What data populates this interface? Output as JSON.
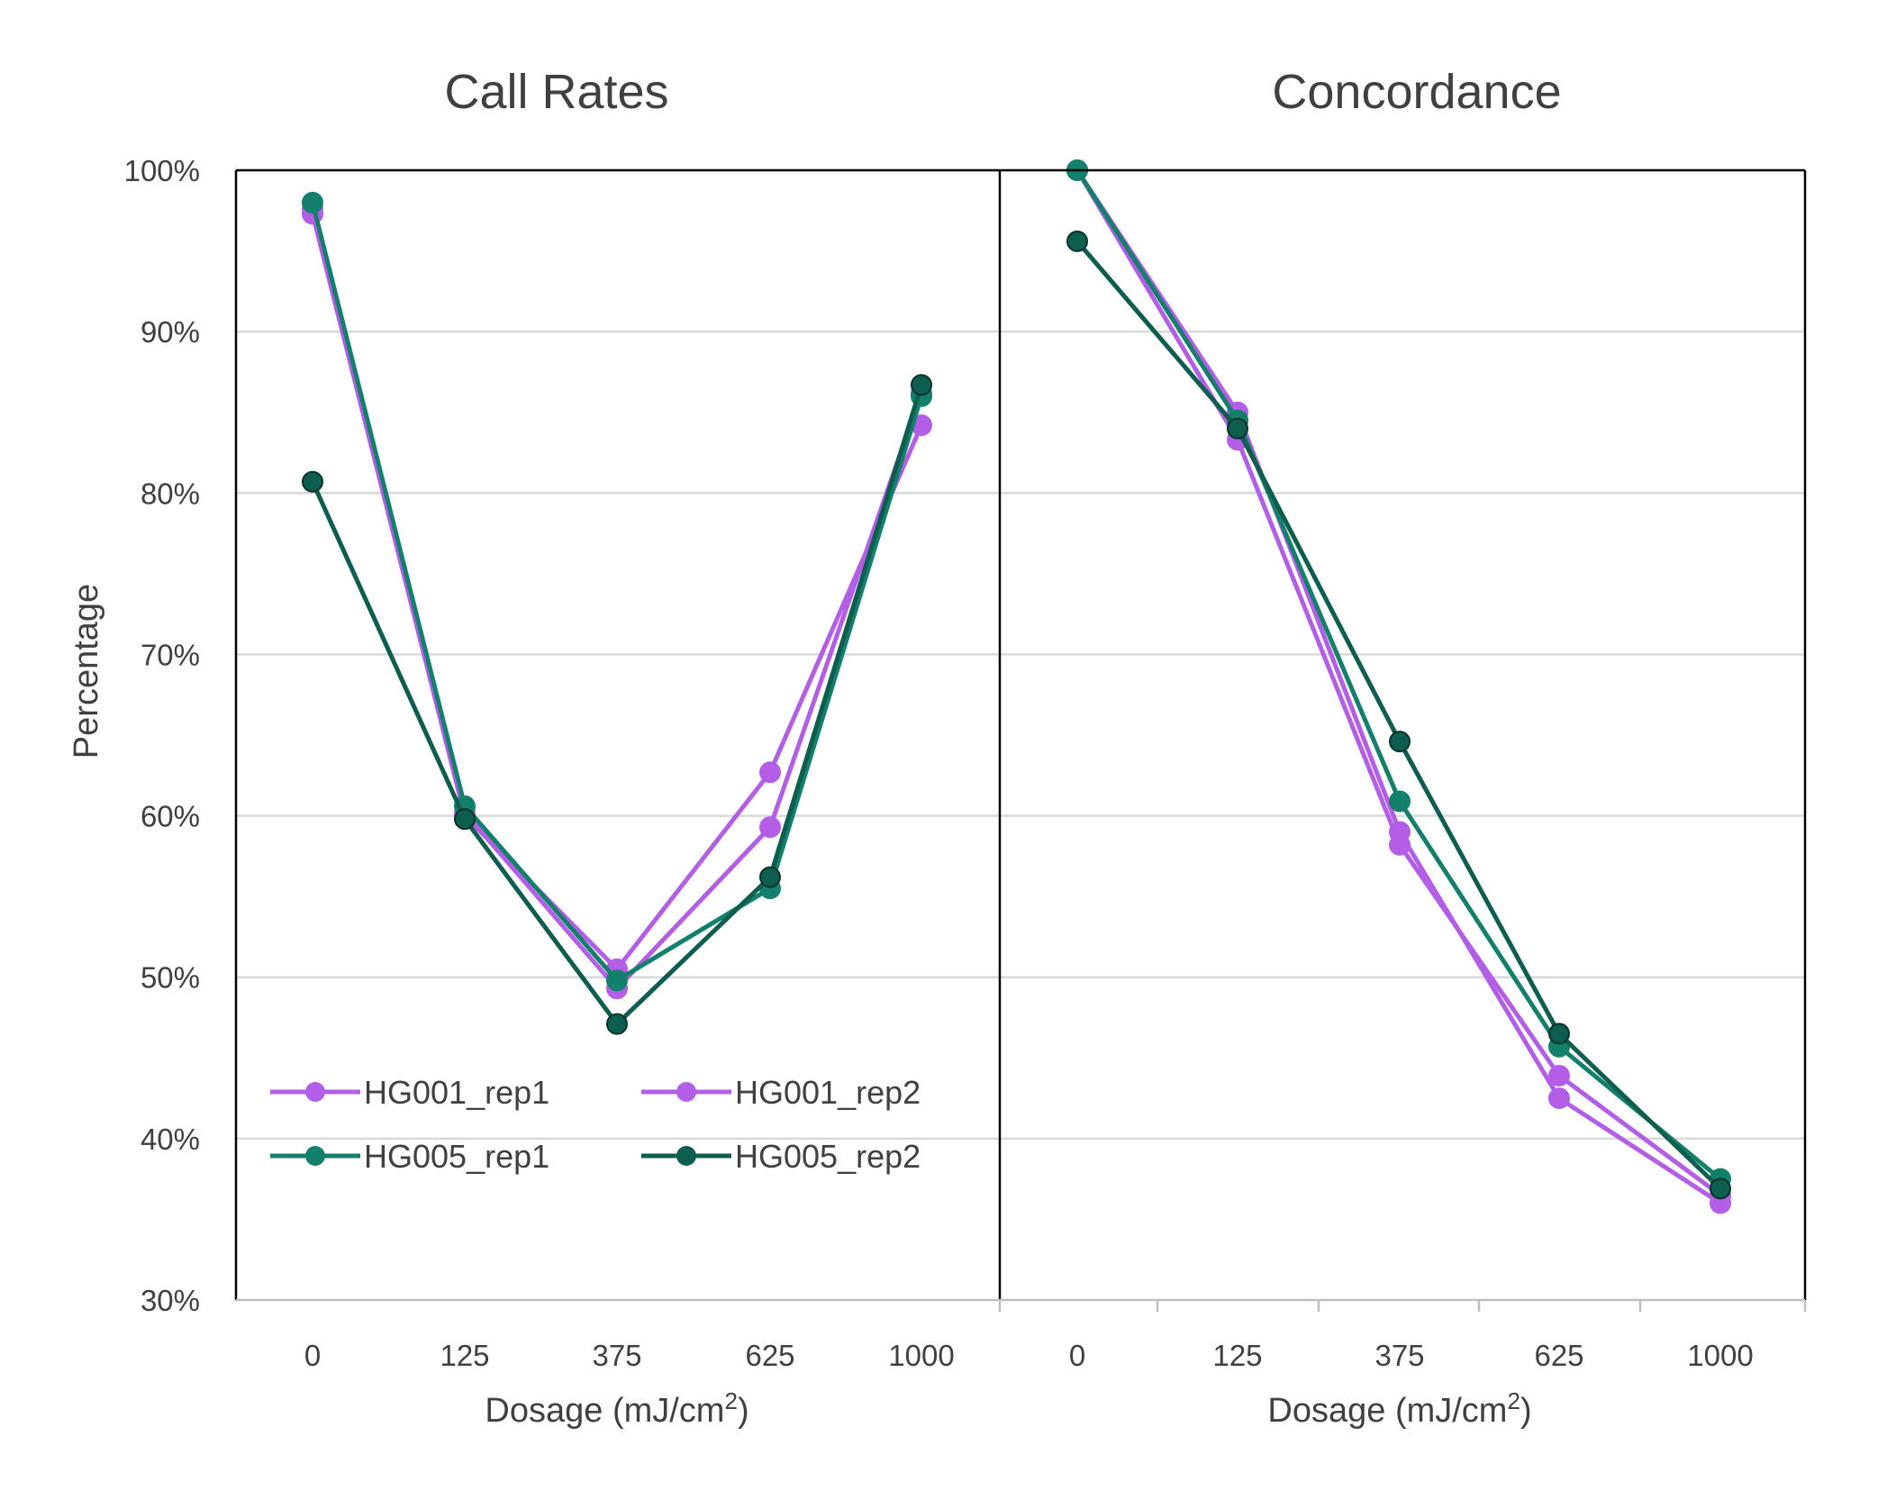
{
  "chart_data": {
    "type": "line",
    "y_axis": {
      "label": "Percentage",
      "ylim": [
        30,
        100
      ],
      "ticks": [
        "30%",
        "40%",
        "50%",
        "60%",
        "70%",
        "80%",
        "90%",
        "100%"
      ]
    },
    "x_axis_label": "Dosage (mJ/cm",
    "x_axis_label_superscript": "2",
    "x_axis_label_close": ")",
    "categories": [
      "0",
      "125",
      "375",
      "625",
      "1000"
    ],
    "grid": "horizontal",
    "legend_placement": "bottom-left of first panel",
    "panels": [
      {
        "title": "Call Rates",
        "series": [
          {
            "name": "HG001_rep1",
            "color": "#b25ee6",
            "values": [
              97.3,
              60.0,
              50.5,
              62.7,
              84.2
            ]
          },
          {
            "name": "HG001_rep2",
            "color": "#b25ee6",
            "values": [
              97.6,
              60.2,
              49.3,
              59.3,
              86.2
            ]
          },
          {
            "name": "HG005_rep1",
            "color": "#12806b",
            "values": [
              98.0,
              60.6,
              49.8,
              55.5,
              86.0
            ]
          },
          {
            "name": "HG005_rep2",
            "color": "#0e5e4f",
            "values": [
              80.7,
              59.8,
              47.1,
              56.2,
              86.7
            ]
          }
        ]
      },
      {
        "title": "Concordance",
        "series": [
          {
            "name": "HG001_rep1",
            "color": "#b25ee6",
            "values": [
              100.0,
              85.0,
              59.0,
              42.5,
              36.0
            ]
          },
          {
            "name": "HG001_rep2",
            "color": "#b25ee6",
            "values": [
              100.0,
              83.3,
              58.2,
              43.9,
              36.5
            ]
          },
          {
            "name": "HG005_rep1",
            "color": "#12806b",
            "values": [
              100.0,
              84.5,
              60.9,
              45.7,
              37.5
            ]
          },
          {
            "name": "HG005_rep2",
            "color": "#0e5e4f",
            "values": [
              95.6,
              84.0,
              64.6,
              46.5,
              36.9
            ]
          }
        ]
      }
    ]
  }
}
